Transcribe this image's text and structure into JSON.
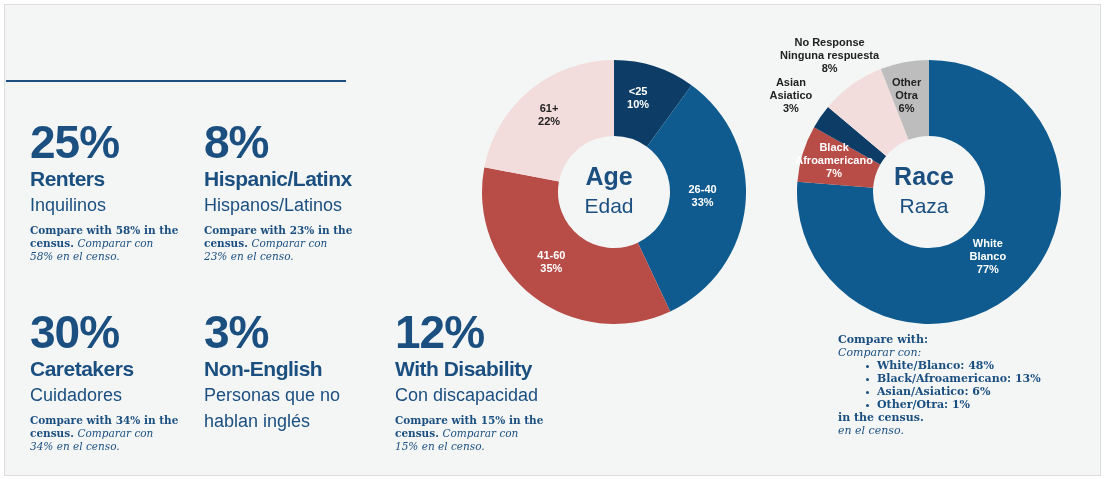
{
  "chart_data": [
    {
      "type": "other",
      "categories": [
        "Renters",
        "Hispanic/Latinx",
        "Caretakers",
        "Non-English",
        "With Disability"
      ],
      "annotations": [
        {
          "text": "25%",
          "x": "Renters"
        },
        {
          "text": "Inquilinos",
          "x": "Renters"
        },
        {
          "text": "Compare with 58% in the census.",
          "x": "Renters"
        },
        {
          "text": "Comparar con 58% en el censo.",
          "x": "Renters"
        },
        {
          "text": "8%",
          "x": "Hispanic/Latinx"
        },
        {
          "text": "Hispanos/Latinos",
          "x": "Hispanic/Latinx"
        },
        {
          "text": "Compare with 23% in the census.",
          "x": "Hispanic/Latinx"
        },
        {
          "text": "Comparar con 23% en el censo.",
          "x": "Hispanic/Latinx"
        },
        {
          "text": "30%",
          "x": "Caretakers"
        },
        {
          "text": "Cuidadores",
          "x": "Caretakers"
        },
        {
          "text": "Compare with 34% in the census.",
          "x": "Caretakers"
        },
        {
          "text": "Comparar con 34% en el censo.",
          "x": "Caretakers"
        },
        {
          "text": "3%",
          "x": "Non-English"
        },
        {
          "text": "Personas que no hablan inglés",
          "x": "Non-English"
        },
        {
          "text": "12%",
          "x": "With Disability"
        },
        {
          "text": "Con discapacidad",
          "x": "With Disability"
        },
        {
          "text": "Compare with 15% in the census.",
          "x": "With Disability"
        },
        {
          "text": "Comparar con 15% en el censo.",
          "x": "With Disability"
        }
      ]
    },
    {
      "type": "donut",
      "title": "Age",
      "subtitle": "Edad",
      "categories": [
        "<25",
        "26-40",
        "41-60",
        "61+"
      ],
      "values": [
        10,
        33,
        35,
        22
      ],
      "value_labels": [
        "10%",
        "33%",
        "35%",
        "22%"
      ],
      "colors": [
        "#0d3d66",
        "#0f5a8f",
        "#b84c47",
        "#f2dcdc"
      ]
    },
    {
      "type": "donut",
      "title": "Race",
      "subtitle": "Raza",
      "categories": [
        "White\nBlanco",
        "Black\nAfroamericano",
        "Asian\nAsiatico",
        "No Response\nNinguna respuesta",
        "Other\nOtra"
      ],
      "values": [
        77,
        7,
        3,
        8,
        6
      ],
      "value_labels": [
        "77%",
        "7%",
        "3%",
        "8%",
        "6%"
      ],
      "colors": [
        "#0f5a8f",
        "#b84c47",
        "#0d3d66",
        "#f2dcdc",
        "#bdbdbd"
      ],
      "annotations": [
        "Compare with:",
        "Comparar con:",
        "White/Blanco: 48%",
        "Black/Afroamericano: 13%",
        "Asian/Asiatico: 6%",
        "Other/Otra: 1%",
        "in the census.",
        "en el censo."
      ]
    }
  ]
}
